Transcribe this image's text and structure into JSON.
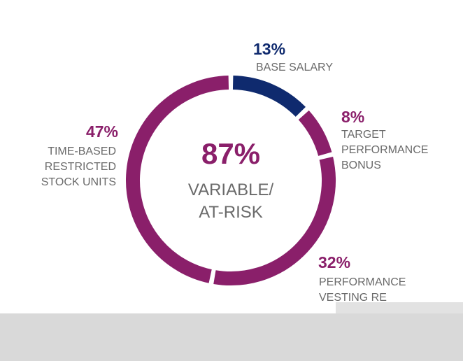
{
  "chart_data": {
    "type": "donut",
    "center_title": "87%",
    "center_subtitle": "VARIABLE/ AT-RISK",
    "categories": [
      "BASE SALARY",
      "TARGET PERFORMANCE BONUS",
      "PERFORMANCE VESTING RE",
      "TIME-BASED RESTRICTED STOCK UNITS"
    ],
    "values": [
      13,
      8,
      32,
      47
    ],
    "value_labels": [
      "13%",
      "8%",
      "32%",
      "47%"
    ],
    "colors": [
      "#0f2a6e",
      "#8a1f6a",
      "#8a1f6a",
      "#8a1f6a"
    ]
  }
}
